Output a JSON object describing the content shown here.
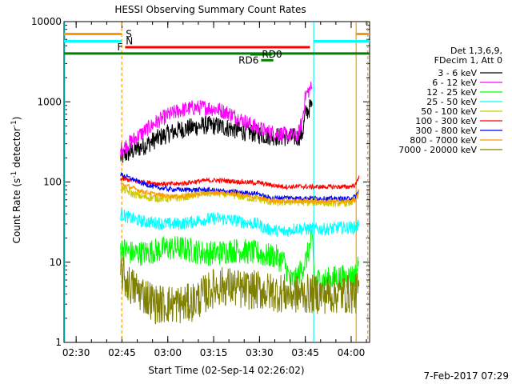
{
  "chart_data": {
    "type": "line",
    "title": "HESSI Observing Summary Count Rates",
    "xlabel": "Start Time (02-Sep-14 02:26:02)",
    "ylabel": "Count Rate (s",
    "ylabel_sup": "-1",
    "ylabel_tail": " detector",
    "ylabel_close": ")",
    "footer": "7-Feb-2017 07:29",
    "x_unit": "minutes after 02:26:02",
    "xlim": [
      0,
      100
    ],
    "ylim": [
      1,
      10000
    ],
    "y_scale": "log",
    "x_ticks": [
      {
        "t": 3.97,
        "label": "02:30"
      },
      {
        "t": 18.97,
        "label": "02:45"
      },
      {
        "t": 33.97,
        "label": "03:00"
      },
      {
        "t": 48.97,
        "label": "03:15"
      },
      {
        "t": 63.97,
        "label": "03:30"
      },
      {
        "t": 78.97,
        "label": "03:45"
      },
      {
        "t": 93.97,
        "label": "04:00"
      }
    ],
    "y_ticks": [
      {
        "v": 1,
        "label": "1"
      },
      {
        "v": 10,
        "label": "10"
      },
      {
        "v": 100,
        "label": "100"
      },
      {
        "v": 1000,
        "label": "1000"
      },
      {
        "v": 10000,
        "label": "10000"
      }
    ],
    "legend": {
      "placement": "right",
      "header": [
        "Det 1,3,6,9,",
        "FDecim 1, Att 0"
      ]
    },
    "series": [
      {
        "name": "3 - 6 keV",
        "color": "#000000",
        "x": [
          18.5,
          22,
          26,
          30,
          34,
          38,
          42,
          46,
          50,
          54,
          58,
          62,
          66,
          70,
          74,
          76.5,
          78,
          79,
          80.5,
          81.2
        ],
        "y": [
          200,
          240,
          280,
          340,
          400,
          450,
          480,
          510,
          500,
          470,
          430,
          410,
          380,
          370,
          360,
          360,
          400,
          700,
          850,
          900
        ]
      },
      {
        "name": "6 - 12 keV",
        "color": "#ff00ff",
        "x": [
          18.5,
          22,
          26,
          30,
          34,
          38,
          42,
          46,
          50,
          54,
          58,
          62,
          66,
          70,
          74,
          76.5,
          78,
          79,
          80.5,
          81.2
        ],
        "y": [
          250,
          320,
          420,
          550,
          680,
          780,
          840,
          850,
          810,
          720,
          600,
          500,
          430,
          400,
          380,
          370,
          600,
          1200,
          1450,
          1500
        ]
      },
      {
        "name": "12 - 25 keV",
        "color": "#00ff00",
        "x": [
          18.5,
          22,
          26,
          30,
          34,
          38,
          42,
          46,
          50,
          54,
          58,
          62,
          63.5,
          66,
          69,
          72,
          74,
          76,
          77.5,
          79,
          80.5,
          81.3,
          82,
          86,
          90,
          93,
          95.5,
          96.5
        ],
        "y": [
          15,
          13,
          13,
          14,
          15,
          15,
          14,
          13,
          13,
          14,
          14,
          13,
          13,
          12,
          12,
          10,
          6,
          6,
          8,
          10,
          16,
          19,
          6,
          6,
          6.5,
          6.5,
          7,
          10
        ]
      },
      {
        "name": "25 - 50 keV",
        "color": "#00ffff",
        "x": [
          18.5,
          22,
          26,
          30,
          34,
          38,
          42,
          46,
          50,
          54,
          58,
          62,
          63.5,
          66,
          69,
          72,
          74,
          76,
          78,
          80.5,
          81.3,
          82,
          86,
          90,
          93,
          95.5,
          96.5
        ],
        "y": [
          40,
          35,
          32,
          31,
          30,
          30,
          32,
          34,
          35,
          34,
          32,
          30,
          30,
          26,
          25,
          24,
          25,
          27,
          26,
          26,
          26,
          26,
          26,
          27,
          27,
          27,
          30
        ]
      },
      {
        "name": "50 - 100 keV",
        "color": "#cccc00",
        "x": [
          18.5,
          22,
          26,
          30,
          34,
          38,
          42,
          46,
          50,
          54,
          58,
          62,
          63.5,
          66,
          69,
          72,
          74,
          76,
          78,
          80.5,
          81.3,
          82,
          86,
          90,
          93,
          95.5,
          96.5
        ],
        "y": [
          85,
          72,
          65,
          63,
          62,
          64,
          68,
          72,
          72,
          70,
          66,
          62,
          62,
          58,
          55,
          56,
          57,
          56,
          56,
          56,
          56,
          56,
          55,
          55,
          55,
          58,
          70
        ]
      },
      {
        "name": "100 - 300 keV",
        "color": "#ff0000",
        "x": [
          18.5,
          22,
          26,
          30,
          34,
          38,
          42,
          46,
          50,
          54,
          58,
          62,
          63.5,
          66,
          69,
          72,
          74,
          76,
          78,
          80.5,
          81.3,
          82,
          86,
          90,
          93,
          95.5,
          96.5
        ],
        "y": [
          110,
          105,
          100,
          96,
          94,
          95,
          100,
          104,
          105,
          103,
          100,
          98,
          98,
          94,
          90,
          88,
          87,
          88,
          88,
          87,
          87,
          87,
          87,
          87,
          87,
          92,
          120
        ]
      },
      {
        "name": "300 - 800 keV",
        "color": "#0000ff",
        "x": [
          18.5,
          22,
          26,
          30,
          34,
          38,
          42,
          46,
          50,
          54,
          58,
          62,
          63.5,
          66,
          69,
          72,
          74,
          76,
          78,
          80.5,
          81.3,
          82,
          86,
          90,
          93,
          95.5,
          96.5
        ],
        "y": [
          125,
          110,
          95,
          86,
          82,
          80,
          80,
          80,
          78,
          76,
          74,
          72,
          72,
          65,
          63,
          64,
          64,
          63,
          63,
          63,
          63,
          63,
          62,
          62,
          62,
          66,
          80
        ]
      },
      {
        "name": "800 - 7000 keV",
        "color": "#ff9900",
        "x": [
          18.5,
          22,
          26,
          30,
          34,
          38,
          42,
          46,
          50,
          54,
          58,
          62,
          63.5,
          66,
          69,
          72,
          74,
          76,
          78,
          80.5,
          81.3,
          82,
          86,
          90,
          93,
          95.5,
          96.5
        ],
        "y": [
          95,
          85,
          76,
          70,
          67,
          66,
          68,
          72,
          74,
          72,
          70,
          66,
          66,
          60,
          58,
          58,
          58,
          58,
          58,
          58,
          58,
          58,
          57,
          57,
          57,
          60,
          75
        ]
      },
      {
        "name": "7000 - 20000 keV",
        "color": "#808000",
        "x": [
          18.5,
          20,
          22,
          24,
          26,
          28,
          30,
          32,
          34,
          36,
          38,
          40,
          42,
          44,
          46,
          48,
          50,
          52,
          54,
          56,
          58,
          60,
          62,
          63.5,
          66,
          69,
          72,
          74,
          76,
          78,
          80.5,
          81.3,
          82,
          86,
          90,
          93,
          95.5,
          96.5
        ],
        "y": [
          8,
          6,
          5,
          4.5,
          4,
          3.5,
          3,
          3,
          3,
          3,
          3,
          3,
          3.2,
          3.5,
          4,
          4.5,
          5,
          5,
          5,
          4.8,
          4.5,
          4.5,
          4.5,
          4.5,
          4.3,
          4.2,
          4.1,
          4,
          4,
          4,
          4,
          4,
          4,
          4,
          4,
          4,
          4,
          5
        ]
      }
    ],
    "flags": [
      {
        "label": "S",
        "color": "#ff9900",
        "value": 7000,
        "segments": [
          [
            0,
            18.9
          ],
          [
            95.5,
            100
          ]
        ]
      },
      {
        "label": "N",
        "color": "#00ffff",
        "value": 5700,
        "segments": [
          [
            0,
            18.9
          ],
          [
            81.7,
            100
          ]
        ]
      },
      {
        "label": "F",
        "color": "#ff0000",
        "value": 4800,
        "segments": [
          [
            20,
            80.5
          ]
        ]
      },
      {
        "label": "",
        "color": "#008000",
        "value": 4000,
        "segments": [
          [
            0,
            100
          ]
        ]
      },
      {
        "label": "RD0",
        "color": "#008000",
        "value": 3900,
        "segments": [
          [
            61,
            68
          ]
        ]
      },
      {
        "label": "RD6",
        "color": "#008000",
        "value": 3300,
        "segments": [
          [
            64.5,
            68.5
          ]
        ]
      }
    ],
    "vlines": [
      {
        "t": 0,
        "color": "#00ffff",
        "dash": false
      },
      {
        "t": 18.9,
        "color": "#ff9900",
        "dash": true
      },
      {
        "t": 81.7,
        "color": "#00ffff",
        "dash": false
      },
      {
        "t": 95.6,
        "color": "#ff9900",
        "dash": false
      },
      {
        "t": 99.4,
        "color": "#ff9900",
        "dash": true
      }
    ]
  }
}
